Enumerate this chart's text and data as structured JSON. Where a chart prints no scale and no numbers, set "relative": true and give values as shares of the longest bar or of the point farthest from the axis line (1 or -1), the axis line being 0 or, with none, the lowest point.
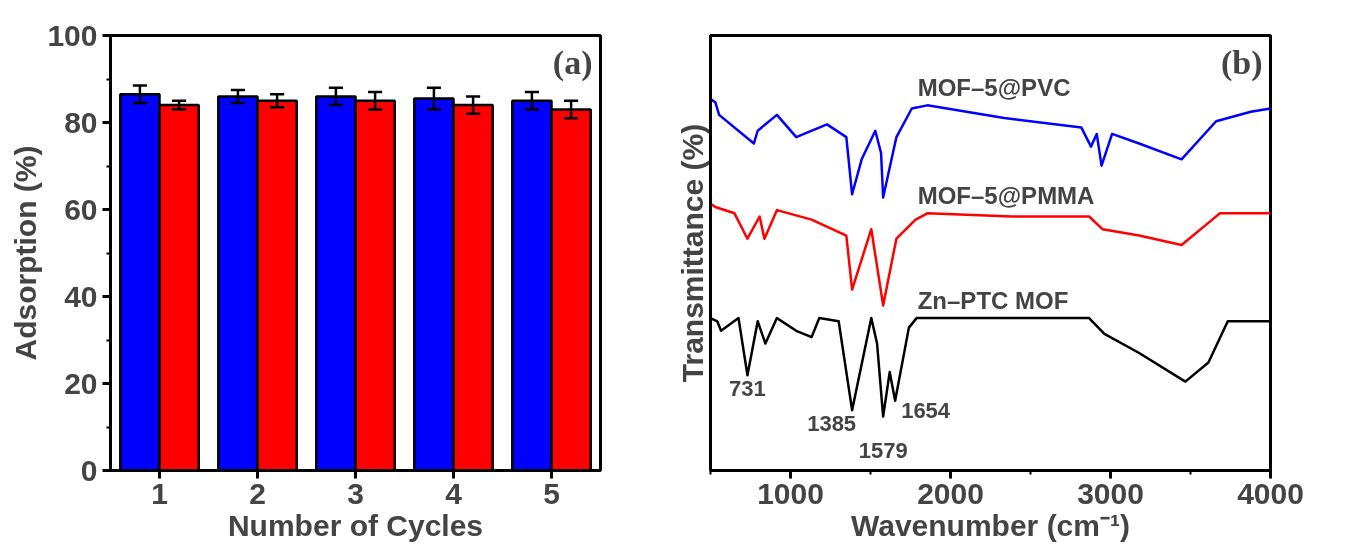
{
  "chart_data": [
    {
      "type": "bar",
      "title": "(a)",
      "xlabel": "Number of Cycles",
      "ylabel": "Adsorption (%)",
      "categories": [
        "1",
        "2",
        "3",
        "4",
        "5"
      ],
      "series": [
        {
          "color": "#0000ff",
          "values": [
            86.5,
            86,
            86,
            85.5,
            85
          ],
          "errors": [
            2,
            1.5,
            2,
            2.5,
            2
          ]
        },
        {
          "color": "#ff0000",
          "values": [
            84,
            85,
            85,
            84,
            83
          ],
          "errors": [
            1,
            1.5,
            2,
            2,
            2
          ]
        }
      ],
      "ylim": [
        0,
        100
      ],
      "yticks": [
        0,
        20,
        40,
        60,
        80,
        100
      ],
      "grid": false,
      "legend": false
    },
    {
      "type": "line",
      "title": "(b)",
      "xlabel": "Wavenumber (cm⁻¹)",
      "ylabel": "Transmittance (%)",
      "relative": true,
      "tick_labels": "x",
      "xlim": [
        500,
        4000
      ],
      "xticks": [
        1000,
        2000,
        3000,
        4000
      ],
      "grid": false,
      "legend": false,
      "marker": "none",
      "line_style": "solid",
      "series": [
        {
          "name": "MOF–5@PVC",
          "color": "#0000ff",
          "x": [
            500,
            530,
            554,
            771,
            795,
            915,
            1036,
            1228,
            1349,
            1385,
            1445,
            1530,
            1566,
            1579,
            1662,
            1758,
            1855,
            2336,
            2818,
            2878,
            2914,
            2944,
            3010,
            3179,
            3444,
            3660,
            3877,
            4000
          ],
          "values": [
            1.0,
            0.99,
            0.95,
            0.86,
            0.9,
            0.95,
            0.88,
            0.92,
            0.88,
            0.7,
            0.81,
            0.9,
            0.83,
            0.69,
            0.88,
            0.97,
            0.98,
            0.94,
            0.91,
            0.85,
            0.89,
            0.79,
            0.89,
            0.86,
            0.81,
            0.93,
            0.96,
            0.97
          ]
        },
        {
          "name": "MOF–5@PMMA",
          "color": "#ff0000",
          "x": [
            500,
            530,
            650,
            731,
            807,
            837,
            915,
            1132,
            1349,
            1385,
            1505,
            1579,
            1662,
            1782,
            1855,
            2384,
            2866,
            2950,
            3179,
            3444,
            3636,
            3684,
            4000
          ],
          "values": [
            0.67,
            0.66,
            0.64,
            0.56,
            0.63,
            0.56,
            0.65,
            0.62,
            0.57,
            0.4,
            0.59,
            0.35,
            0.56,
            0.62,
            0.64,
            0.63,
            0.63,
            0.59,
            0.57,
            0.54,
            0.62,
            0.64,
            0.64
          ]
        },
        {
          "name": "Zn–PTC MOF",
          "color": "#000000",
          "x": [
            500,
            542,
            566,
            675,
            731,
            795,
            843,
            915,
            1036,
            1132,
            1180,
            1301,
            1385,
            1505,
            1541,
            1579,
            1620,
            1654,
            1740,
            1788,
            1933,
            2866,
            2962,
            3179,
            3468,
            3612,
            3733,
            4000
          ],
          "values": [
            0.31,
            0.3,
            0.27,
            0.31,
            0.13,
            0.3,
            0.23,
            0.31,
            0.27,
            0.25,
            0.31,
            0.3,
            0.02,
            0.31,
            0.23,
            0.0,
            0.14,
            0.05,
            0.28,
            0.31,
            0.31,
            0.31,
            0.26,
            0.2,
            0.11,
            0.17,
            0.3,
            0.3
          ]
        }
      ],
      "annotations": [
        {
          "text": "731",
          "x": 731,
          "y": 0.13
        },
        {
          "text": "1385",
          "x": 1385,
          "y": 0.02
        },
        {
          "text": "1579",
          "x": 1579,
          "y": 0.0
        },
        {
          "text": "1654",
          "x": 1654,
          "y": 0.05
        }
      ]
    }
  ]
}
